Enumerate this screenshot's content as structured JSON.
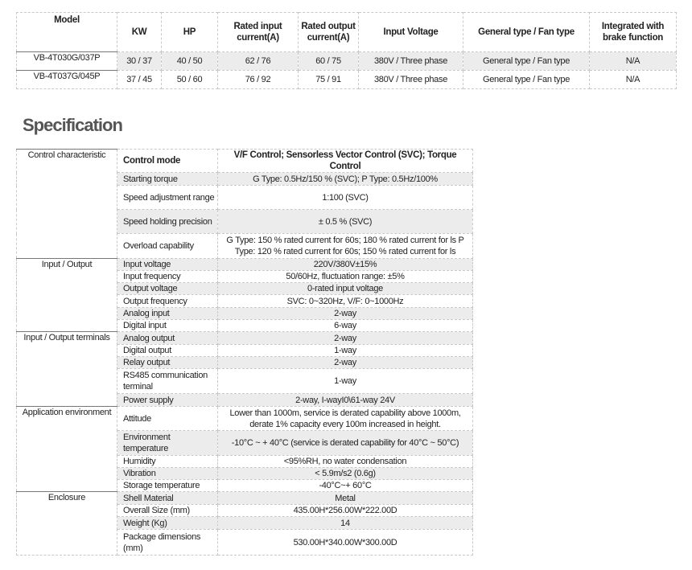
{
  "models": {
    "headers": [
      "Model",
      "KW",
      "HP",
      "Rated input current(A)",
      "Rated output current(A)",
      "Input Voltage",
      "General type / Fan type",
      "Integrated with brake function"
    ],
    "rows": [
      [
        "VB-4T030G/037P",
        "30 / 37",
        "40 / 50",
        "62 / 76",
        "60 / 75",
        "380V / Three phase",
        "General type / Fan type",
        "N/A"
      ],
      [
        "VB-4T037G/045P",
        "37 / 45",
        "50 / 60",
        "76 / 92",
        "75 / 91",
        "380V / Three phase",
        "General type / Fan type",
        "N/A"
      ]
    ]
  },
  "spec_title": "Specification",
  "spec": [
    {
      "group": "Control characteristic",
      "items": [
        [
          "Control mode",
          "V/F Control; Sensorless Vector Control (SVC); Torque Control"
        ],
        [
          "Starting torque",
          "G Type: 0.5Hz/150 % (SVC); P Type: 0.5Hz/100%"
        ],
        [
          "Speed adjustment range",
          "1:100 (SVC)"
        ],
        [
          "Speed holding precision",
          "± 0.5 % (SVC)"
        ],
        [
          "Overload capability",
          "G Type: 150 % rated current for 60s; 180 % rated current for ls P Type: 120 % rated current for 60s; 150 % rated current for ls"
        ]
      ]
    },
    {
      "group": "Input / Output",
      "items": [
        [
          "Input voltage",
          "220V/380V±15%"
        ],
        [
          "Input frequency",
          "50/60Hz, fluctuation range: ±5%"
        ],
        [
          "Output voltage",
          "0-rated input voltage"
        ],
        [
          "Output frequency",
          "SVC: 0~320Hz, V/F: 0~1000Hz"
        ],
        [
          "Analog input",
          "2-way"
        ],
        [
          "Digital input",
          "6-way"
        ]
      ]
    },
    {
      "group": "Input / Output terminals",
      "items": [
        [
          "Analog output",
          "2-way"
        ],
        [
          "Digital output",
          "1-way"
        ],
        [
          "Relay output",
          "2-way"
        ],
        [
          "RS485 communication terminal",
          "1-way"
        ],
        [
          "Power supply",
          "2-way, I-wayI0\\61-way 24V"
        ]
      ]
    },
    {
      "group": "Application environment",
      "items": [
        [
          "Attitude",
          "Lower than 1000m, service is derated capability above 1000m, derate 1% capacity every 100m increased in height."
        ],
        [
          "Environment temperature",
          "-10°C ~ + 40°C (service is derated capability for 40°C ~ 50°C)"
        ],
        [
          "Humidity",
          "<95%RH, no water condensation"
        ],
        [
          "Vibration",
          "< 5.9m/s2 (0.6g)"
        ],
        [
          "Storage temperature",
          "-40°C~+ 60°C"
        ]
      ]
    },
    {
      "group": "Enclosure",
      "items": [
        [
          "Shell Material",
          "Metal"
        ],
        [
          "Overall Size (mm)",
          "435.00H*256.00W*222.00D"
        ],
        [
          "Weight (Kg)",
          "14"
        ],
        [
          "Package dimensions (mm)",
          "530.00H*340.00W*300.00D"
        ]
      ]
    }
  ]
}
